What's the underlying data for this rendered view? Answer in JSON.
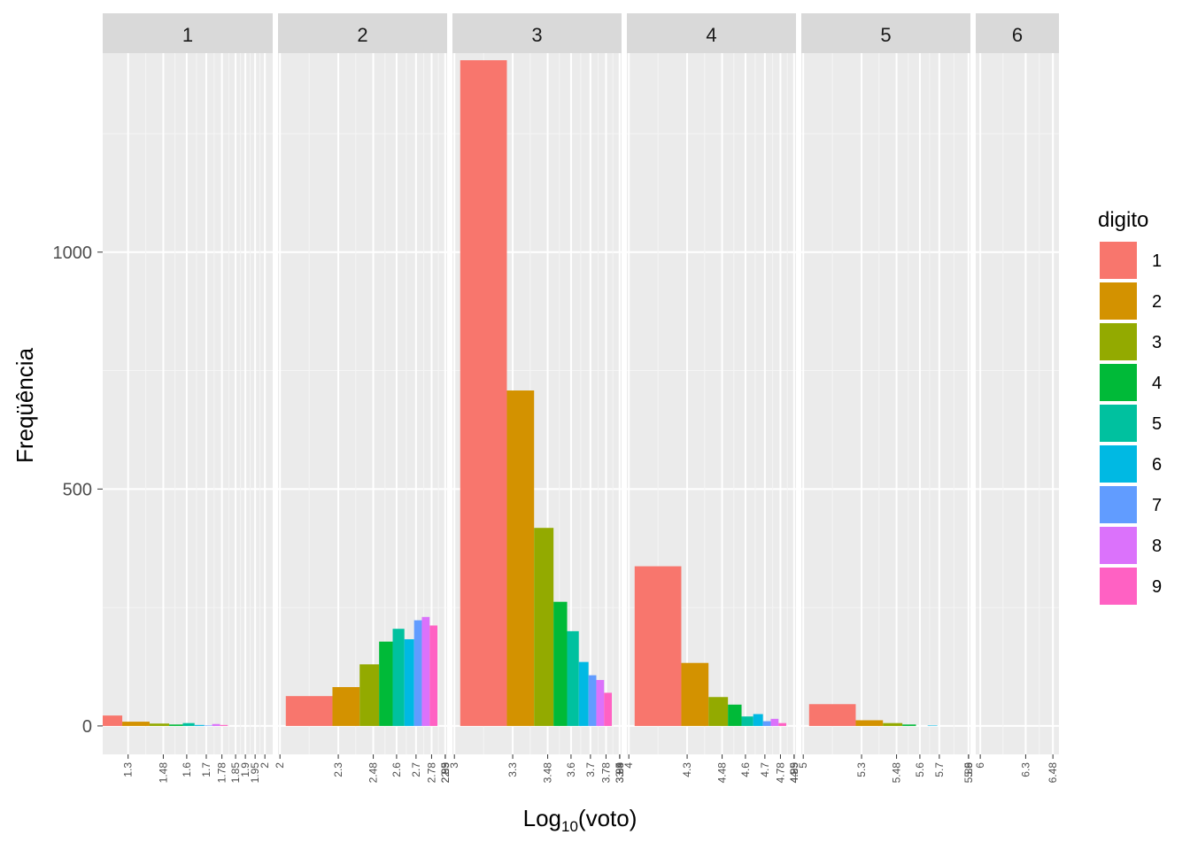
{
  "chart_data": {
    "type": "bar",
    "facet_by": "digitos",
    "xlabel_base": "Log",
    "xlabel_sub": "10",
    "xlabel_rest": "(voto)",
    "ylabel": "Freqüência",
    "yticks": [
      0,
      500,
      1000
    ],
    "ylim": [
      -60,
      1420
    ],
    "legend": {
      "title": "digito",
      "placement": "right",
      "entries": [
        "1",
        "2",
        "3",
        "4",
        "5",
        "6",
        "7",
        "8",
        "9"
      ]
    },
    "colors": [
      "#F8766D",
      "#D39200",
      "#93AA00",
      "#00BA38",
      "#00C19F",
      "#00B9E3",
      "#619CFF",
      "#DB72FB",
      "#FF61C3"
    ],
    "panels": [
      {
        "label": "1",
        "xlim": [
          1.17,
          2.04
        ],
        "ticks": [
          "1.3",
          "1.48",
          "1.6",
          "1.7",
          "1.78",
          "1.85",
          "1.9",
          "1.95",
          "2"
        ],
        "tick_pos": [
          1.3,
          1.48,
          1.6,
          1.7,
          1.78,
          1.85,
          1.9,
          1.95,
          2.0
        ],
        "bars": [
          {
            "digit": 1,
            "x0": 1.03,
            "x1": 1.27,
            "value": 22
          },
          {
            "digit": 2,
            "x0": 1.27,
            "x1": 1.41,
            "value": 9
          },
          {
            "digit": 3,
            "x0": 1.41,
            "x1": 1.51,
            "value": 5
          },
          {
            "digit": 4,
            "x0": 1.51,
            "x1": 1.58,
            "value": 3
          },
          {
            "digit": 5,
            "x0": 1.58,
            "x1": 1.64,
            "value": 6
          },
          {
            "digit": 6,
            "x0": 1.64,
            "x1": 1.69,
            "value": 2
          },
          {
            "digit": 7,
            "x0": 1.69,
            "x1": 1.73,
            "value": 1
          },
          {
            "digit": 8,
            "x0": 1.73,
            "x1": 1.77,
            "value": 4
          },
          {
            "digit": 9,
            "x0": 1.77,
            "x1": 1.81,
            "value": 2
          }
        ]
      },
      {
        "label": "2",
        "xlim": [
          1.99,
          2.86
        ],
        "ticks": [
          "2",
          "2.3",
          "2.48",
          "2.6",
          "2.7",
          "2.78",
          "2.85",
          "2.9",
          "2.95",
          "3"
        ],
        "tick_pos": [
          2.0,
          2.3,
          2.48,
          2.6,
          2.7,
          2.78,
          2.85,
          2.9,
          2.95,
          3.0
        ],
        "bars": [
          {
            "digit": 1,
            "x0": 2.03,
            "x1": 2.27,
            "value": 63
          },
          {
            "digit": 2,
            "x0": 2.27,
            "x1": 2.41,
            "value": 82
          },
          {
            "digit": 3,
            "x0": 2.41,
            "x1": 2.51,
            "value": 130
          },
          {
            "digit": 4,
            "x0": 2.51,
            "x1": 2.58,
            "value": 178
          },
          {
            "digit": 5,
            "x0": 2.58,
            "x1": 2.64,
            "value": 205
          },
          {
            "digit": 6,
            "x0": 2.64,
            "x1": 2.69,
            "value": 183
          },
          {
            "digit": 7,
            "x0": 2.69,
            "x1": 2.73,
            "value": 223
          },
          {
            "digit": 8,
            "x0": 2.73,
            "x1": 2.77,
            "value": 230
          },
          {
            "digit": 9,
            "x0": 2.77,
            "x1": 2.81,
            "value": 212
          }
        ]
      },
      {
        "label": "3",
        "xlim": [
          2.99,
          3.86
        ],
        "ticks": [
          "3",
          "3.3",
          "3.48",
          "3.6",
          "3.7",
          "3.78",
          "3.85",
          "3.9",
          "3.95",
          "4"
        ],
        "tick_pos": [
          3.0,
          3.3,
          3.48,
          3.6,
          3.7,
          3.78,
          3.85,
          3.9,
          3.95,
          4.0
        ],
        "bars": [
          {
            "digit": 1,
            "x0": 3.03,
            "x1": 3.27,
            "value": 1405
          },
          {
            "digit": 2,
            "x0": 3.27,
            "x1": 3.41,
            "value": 708
          },
          {
            "digit": 3,
            "x0": 3.41,
            "x1": 3.51,
            "value": 418
          },
          {
            "digit": 4,
            "x0": 3.51,
            "x1": 3.58,
            "value": 262
          },
          {
            "digit": 5,
            "x0": 3.58,
            "x1": 3.64,
            "value": 200
          },
          {
            "digit": 6,
            "x0": 3.64,
            "x1": 3.69,
            "value": 135
          },
          {
            "digit": 7,
            "x0": 3.69,
            "x1": 3.73,
            "value": 107
          },
          {
            "digit": 8,
            "x0": 3.73,
            "x1": 3.77,
            "value": 97
          },
          {
            "digit": 9,
            "x0": 3.77,
            "x1": 3.81,
            "value": 70
          }
        ]
      },
      {
        "label": "4",
        "xlim": [
          3.99,
          4.86
        ],
        "ticks": [
          "4",
          "4.3",
          "4.48",
          "4.6",
          "4.7",
          "4.78",
          "4.85",
          "4.9",
          "4.95",
          "5"
        ],
        "tick_pos": [
          4.0,
          4.3,
          4.48,
          4.6,
          4.7,
          4.78,
          4.85,
          4.9,
          4.95,
          5.0
        ],
        "bars": [
          {
            "digit": 1,
            "x0": 4.03,
            "x1": 4.27,
            "value": 337
          },
          {
            "digit": 2,
            "x0": 4.27,
            "x1": 4.41,
            "value": 133
          },
          {
            "digit": 3,
            "x0": 4.41,
            "x1": 4.51,
            "value": 61
          },
          {
            "digit": 4,
            "x0": 4.51,
            "x1": 4.58,
            "value": 45
          },
          {
            "digit": 5,
            "x0": 4.58,
            "x1": 4.64,
            "value": 20
          },
          {
            "digit": 6,
            "x0": 4.64,
            "x1": 4.69,
            "value": 25
          },
          {
            "digit": 7,
            "x0": 4.69,
            "x1": 4.73,
            "value": 10
          },
          {
            "digit": 8,
            "x0": 4.73,
            "x1": 4.77,
            "value": 15
          },
          {
            "digit": 9,
            "x0": 4.77,
            "x1": 4.81,
            "value": 6
          }
        ]
      },
      {
        "label": "5",
        "xlim": [
          4.99,
          5.86
        ],
        "ticks": [
          "5",
          "5.3",
          "5.48",
          "5.6",
          "5.7",
          "5.85",
          "5.9",
          "6",
          "6"
        ],
        "tick_pos": [
          5.0,
          5.3,
          5.48,
          5.6,
          5.7,
          5.85,
          5.9,
          6.0,
          6.05
        ],
        "bars": [
          {
            "digit": 1,
            "x0": 5.03,
            "x1": 5.27,
            "value": 46
          },
          {
            "digit": 2,
            "x0": 5.27,
            "x1": 5.41,
            "value": 12
          },
          {
            "digit": 3,
            "x0": 5.41,
            "x1": 5.51,
            "value": 6
          },
          {
            "digit": 4,
            "x0": 5.51,
            "x1": 5.58,
            "value": 3
          },
          {
            "digit": 6,
            "x0": 5.64,
            "x1": 5.69,
            "value": 1
          }
        ]
      },
      {
        "label": "6",
        "xlim": [
          5.97,
          6.52
        ],
        "ticks": [
          "6",
          "6.3",
          "6.48"
        ],
        "tick_pos": [
          6.0,
          6.3,
          6.48
        ],
        "bars": []
      }
    ]
  }
}
